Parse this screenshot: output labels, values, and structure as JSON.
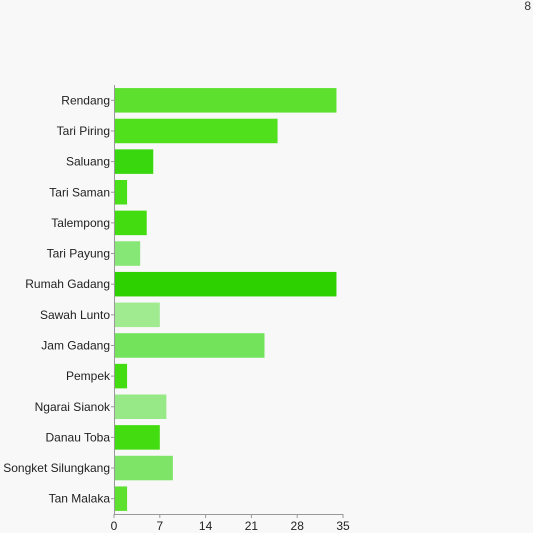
{
  "corner_label": "8",
  "chart_data": {
    "type": "bar",
    "orientation": "horizontal",
    "title": "",
    "xlabel": "",
    "ylabel": "",
    "xlim": [
      0,
      35
    ],
    "x_ticks": [
      0,
      7,
      14,
      21,
      28,
      35
    ],
    "grid": false,
    "legend": "none",
    "categories": [
      "Rendang",
      "Tari Piring",
      "Saluang",
      "Tari Saman",
      "Talempong",
      "Tari Payung",
      "Rumah Gadang",
      "Sawah Lunto",
      "Jam Gadang",
      "Pempek",
      "Ngarai Sianok",
      "Danau Toba",
      "Songket Silungkang",
      "Tan Malaka"
    ],
    "values": [
      34,
      25,
      6,
      2,
      5,
      4,
      34,
      7,
      23,
      2,
      8,
      7,
      9,
      2
    ],
    "colors": [
      "#5ee02f",
      "#50e01c",
      "#38d70e",
      "#49e01a",
      "#42dc11",
      "#86e676",
      "#2ed100",
      "#a0ea90",
      "#72e35a",
      "#42dc11",
      "#96e986",
      "#42dc11",
      "#7ee468",
      "#5ee02f"
    ]
  }
}
